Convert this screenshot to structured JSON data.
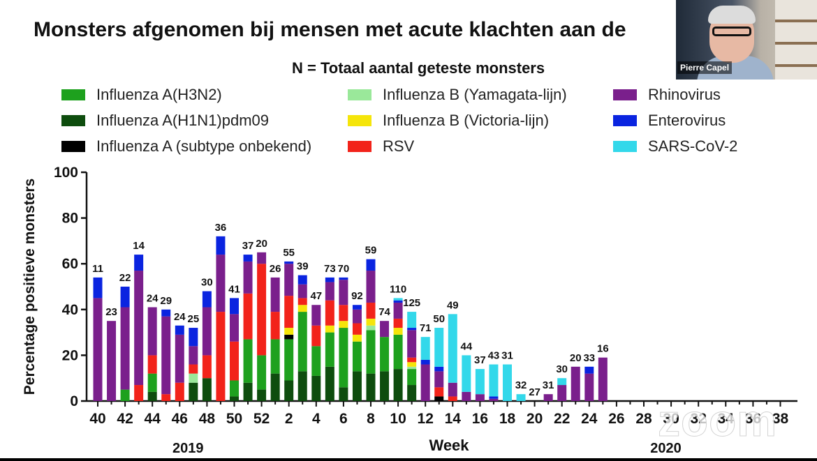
{
  "title": "Monsters afgenomen bij mensen met acute klachten aan de",
  "subtitle": "N = Totaal aantal geteste monsters",
  "video_tile": {
    "participant_name": "Pierre Capel"
  },
  "watermark": "zoom",
  "legend": [
    {
      "name": "Influenza A(H3N2)",
      "color": "#1ea11e"
    },
    {
      "name": "Influenza A(H1N1)pdm09",
      "color": "#0e4d0e"
    },
    {
      "name": "Influenza A (subtype onbekend)",
      "color": "#000000"
    },
    {
      "name": "Influenza B (Yamagata-lijn)",
      "color": "#9ae89a"
    },
    {
      "name": "Influenza B (Victoria-lijn)",
      "color": "#f5e50a"
    },
    {
      "name": "RSV",
      "color": "#f2231a"
    },
    {
      "name": "Rhinovirus",
      "color": "#7a1f8c"
    },
    {
      "name": "Enterovirus",
      "color": "#0a24e0"
    },
    {
      "name": "SARS-CoV-2",
      "color": "#33d8ea"
    }
  ],
  "chart_data": {
    "type": "bar",
    "stacked": true,
    "ylabel": "Percentage positieve monsters",
    "xlabel": "Week",
    "ylim": [
      0,
      100
    ],
    "yticks": [
      0,
      20,
      40,
      60,
      80,
      100
    ],
    "year_labels": [
      {
        "label": "2019",
        "week_index": 6
      },
      {
        "label": "2020",
        "week_index": 41
      }
    ],
    "weeks": [
      40,
      41,
      42,
      43,
      44,
      45,
      46,
      47,
      48,
      49,
      50,
      51,
      52,
      1,
      2,
      3,
      4,
      5,
      6,
      7,
      8,
      9,
      10,
      11,
      12,
      13,
      14,
      15,
      16,
      17,
      18,
      19,
      20,
      21,
      22,
      23,
      24,
      25,
      26,
      27,
      28,
      29,
      30,
      31,
      32,
      33,
      34,
      35,
      36,
      37,
      38
    ],
    "tick_labels": [
      "40",
      "42",
      "44",
      "46",
      "48",
      "50",
      "52",
      "2",
      "4",
      "6",
      "8",
      "10",
      "12",
      "14",
      "16",
      "18",
      "20",
      "22",
      "24",
      "26",
      "28",
      "30",
      "32",
      "34",
      "36",
      "38"
    ],
    "tick_week_indices": [
      0,
      2,
      4,
      6,
      8,
      10,
      12,
      14,
      16,
      18,
      20,
      22,
      24,
      26,
      28,
      30,
      32,
      34,
      36,
      38,
      40,
      42,
      44,
      46,
      48,
      50
    ],
    "n_labels": [
      "11",
      "23",
      "22",
      "14",
      "24",
      "29",
      "24",
      "25",
      "30",
      "36",
      "41",
      "37",
      "20",
      "26",
      "55",
      "39",
      "47",
      "73",
      "70",
      "92",
      "59",
      "74",
      "110",
      "125",
      "71",
      "50",
      "49",
      "44",
      "37",
      "43",
      "31",
      "32",
      "27",
      "31",
      "30",
      "20",
      "33",
      "16"
    ],
    "series": [
      {
        "name": "Influenza A(H1N1)pdm09",
        "values": [
          0,
          0,
          0,
          0,
          4,
          0,
          0,
          8,
          10,
          0,
          2,
          8,
          5,
          12,
          9,
          13,
          11,
          15,
          6,
          13,
          12,
          13,
          14,
          7,
          0,
          0,
          0,
          0,
          0,
          0,
          0,
          0,
          0,
          0,
          0,
          0,
          0,
          0
        ]
      },
      {
        "name": "Influenza A(H3N2)",
        "values": [
          0,
          0,
          5,
          0,
          8,
          0,
          0,
          0,
          0,
          0,
          7,
          19,
          15,
          15,
          18,
          26,
          13,
          15,
          26,
          13,
          19,
          15,
          15,
          7,
          0,
          0,
          0,
          0,
          0,
          0,
          0,
          0,
          0,
          0,
          0,
          0,
          0,
          0
        ]
      },
      {
        "name": "Influenza A (subtype onbekend)",
        "values": [
          0,
          0,
          0,
          0,
          0,
          0,
          0,
          0,
          0,
          0,
          0,
          0,
          0,
          0,
          2,
          0,
          0,
          0,
          0,
          0,
          0,
          0,
          0,
          0,
          0,
          2,
          0,
          0,
          0,
          0,
          0,
          0,
          0,
          0,
          0,
          0,
          0,
          0
        ]
      },
      {
        "name": "Influenza B (Yamagata-lijn)",
        "values": [
          0,
          0,
          0,
          0,
          0,
          0,
          0,
          4,
          0,
          0,
          0,
          0,
          0,
          0,
          0,
          0,
          0,
          0,
          0,
          0,
          2,
          0,
          0,
          1,
          0,
          0,
          0,
          0,
          0,
          0,
          0,
          0,
          0,
          0,
          0,
          0,
          0,
          0
        ]
      },
      {
        "name": "Influenza B (Victoria-lijn)",
        "values": [
          0,
          0,
          0,
          0,
          0,
          0,
          0,
          0,
          0,
          0,
          0,
          0,
          0,
          0,
          3,
          3,
          0,
          3,
          3,
          3,
          3,
          0,
          3,
          2,
          0,
          0,
          0,
          0,
          0,
          0,
          0,
          0,
          0,
          0,
          0,
          0,
          0,
          0
        ]
      },
      {
        "name": "RSV",
        "values": [
          0,
          0,
          0,
          7,
          8,
          3,
          8,
          4,
          10,
          39,
          17,
          20,
          40,
          12,
          14,
          3,
          9,
          11,
          7,
          5,
          7,
          0,
          4,
          2,
          0,
          4,
          2,
          0,
          0,
          0,
          0,
          0,
          0,
          0,
          0,
          0,
          0,
          0
        ]
      },
      {
        "name": "Rhinovirus",
        "values": [
          45,
          35,
          36,
          50,
          21,
          34,
          21,
          8,
          21,
          25,
          12,
          14,
          5,
          15,
          14,
          6,
          9,
          8,
          11,
          6,
          14,
          7,
          7,
          12,
          16,
          7,
          6,
          4,
          3,
          1,
          0,
          0,
          0,
          3,
          7,
          15,
          12,
          19
        ]
      },
      {
        "name": "Enterovirus",
        "values": [
          9,
          0,
          9,
          7,
          0,
          3,
          4,
          8,
          7,
          8,
          7,
          3,
          0,
          0,
          1,
          4,
          0,
          2,
          1,
          2,
          5,
          0,
          1,
          1,
          2,
          2,
          0,
          0,
          0,
          1,
          0,
          0,
          0,
          0,
          0,
          0,
          3,
          0
        ]
      },
      {
        "name": "SARS-CoV-2",
        "values": [
          0,
          0,
          0,
          0,
          0,
          0,
          0,
          0,
          0,
          0,
          0,
          0,
          0,
          0,
          0,
          0,
          0,
          0,
          0,
          0,
          0,
          0,
          1,
          7,
          10,
          17,
          30,
          16,
          11,
          14,
          16,
          3,
          0,
          0,
          3,
          0,
          0,
          0
        ]
      }
    ]
  }
}
